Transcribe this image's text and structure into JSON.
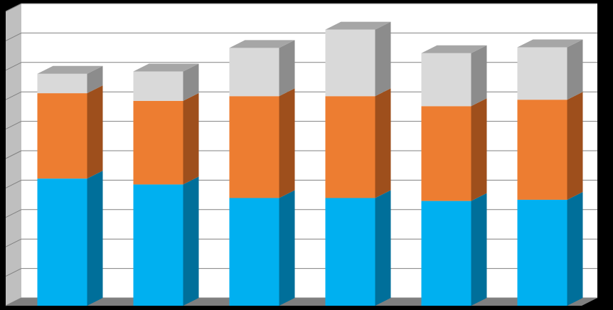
{
  "chart_data": {
    "type": "bar",
    "stacked": true,
    "three_d": true,
    "categories": [
      "",
      "",
      "",
      "",
      "",
      ""
    ],
    "series": [
      {
        "values": [
          216,
          206,
          183,
          183,
          178,
          180
        ],
        "color": "#00B0F0",
        "side_color": "#006F9A"
      },
      {
        "values": [
          145,
          142,
          173,
          173,
          161,
          170
        ],
        "color": "#ED7D31",
        "side_color": "#9E4F1C"
      },
      {
        "values": [
          33,
          50,
          82,
          113,
          90,
          89
        ],
        "color": "#D9D9D9",
        "side_color": "#8C8C8C"
      }
    ],
    "ylim": [
      0,
      500
    ],
    "y_gridline_step": 50,
    "grid": true,
    "legend": "none",
    "colors": {
      "background": "#000000",
      "plot_back_wall": "#FFFFFF",
      "plot_side_wall": "#BFBFBF",
      "floor": "#7F7F7F",
      "gridline": "#808080"
    }
  }
}
